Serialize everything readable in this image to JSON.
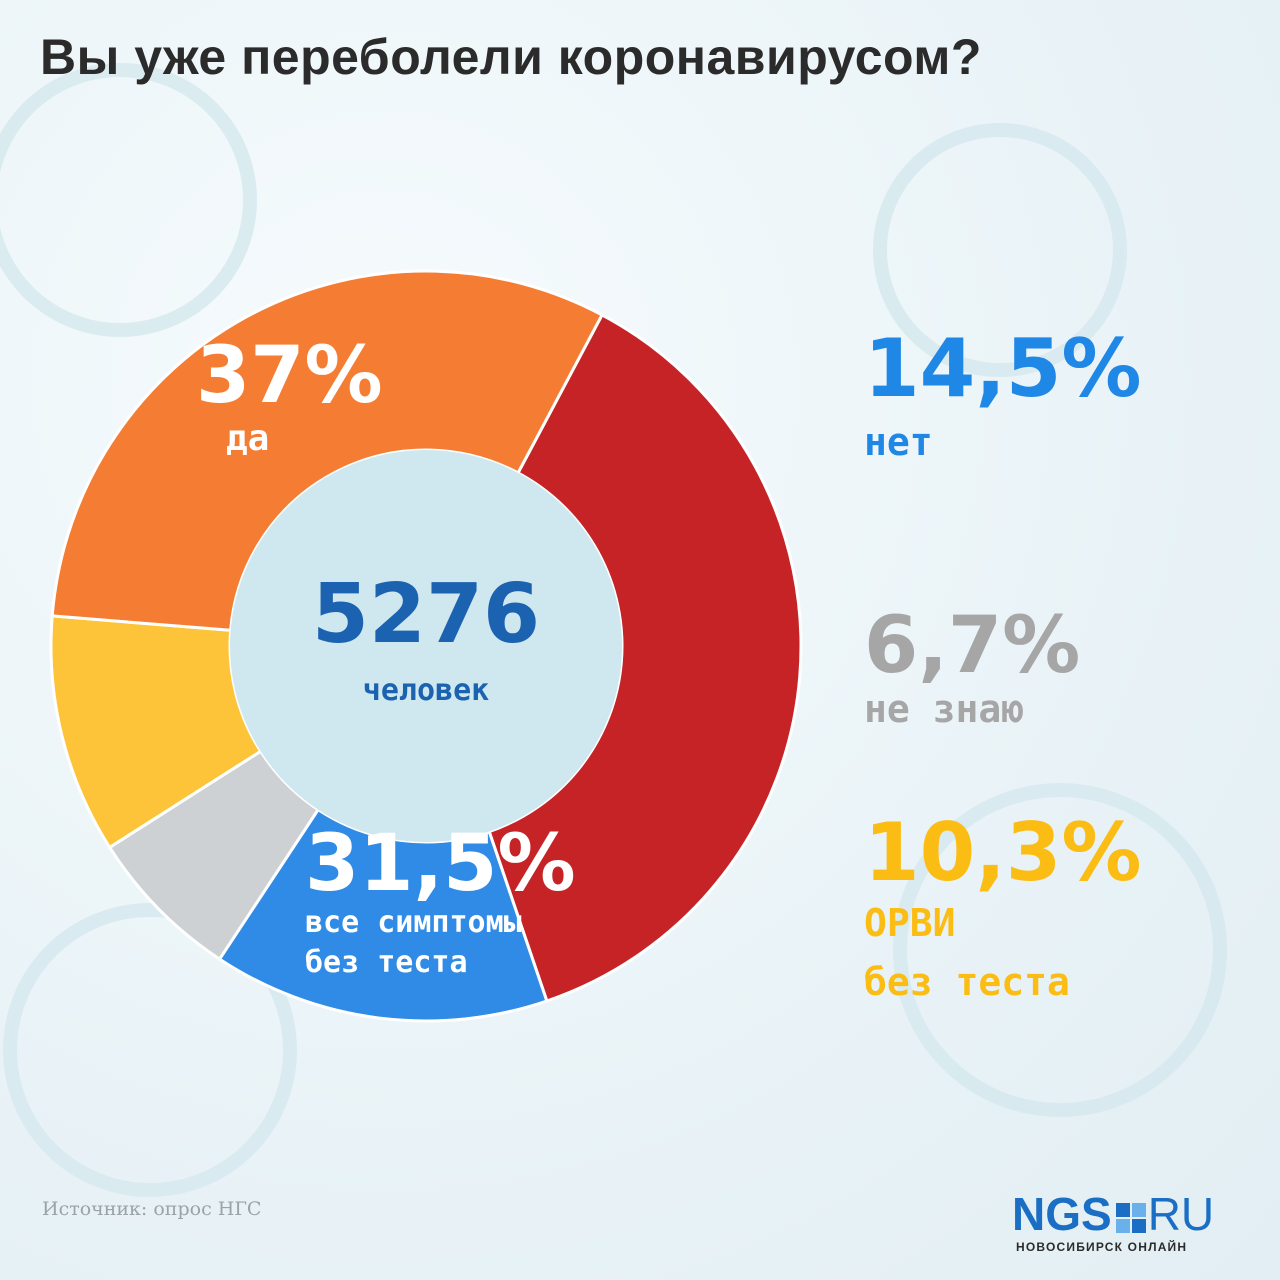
{
  "title": "Вы уже переболели коронавирусом?",
  "center": {
    "value": "5276",
    "caption": "человек"
  },
  "chart_data": {
    "type": "pie",
    "title": "Вы уже переболели коронавирусом?",
    "total": "5276",
    "total_caption": "человек",
    "slices": [
      {
        "value": 37.0,
        "label_value": "37%",
        "label_lines": [
          "да"
        ],
        "color": "#c62327"
      },
      {
        "value": 14.5,
        "label_value": "14,5%",
        "label_lines": [
          "нет"
        ],
        "color": "#2f8be6"
      },
      {
        "value": 6.7,
        "label_value": "6,7%",
        "label_lines": [
          "не знаю"
        ],
        "color": "#cdd1d3"
      },
      {
        "value": 10.3,
        "label_value": "10,3%",
        "label_lines": [
          "ОРВИ",
          "без теста"
        ],
        "color": "#fdc43a"
      },
      {
        "value": 31.5,
        "label_value": "31,5%",
        "label_lines": [
          "все симптомы",
          "без теста"
        ],
        "color": "#f47d33"
      }
    ]
  },
  "colors": {
    "title": "#2b2b2b",
    "center_text": "#1b62b0",
    "label_blue": "#1f87e5",
    "label_gray": "#a6a6a6",
    "label_yellow": "#fbbd14",
    "center_fill": "#cfe7ee"
  },
  "source": "Источник: опрос НГС",
  "logo": {
    "brand": "NGS",
    "suffix": "RU",
    "subtitle": "НОВОСИБИРСК ОНЛАЙН",
    "icon": "ngs-square-logo-icon"
  }
}
